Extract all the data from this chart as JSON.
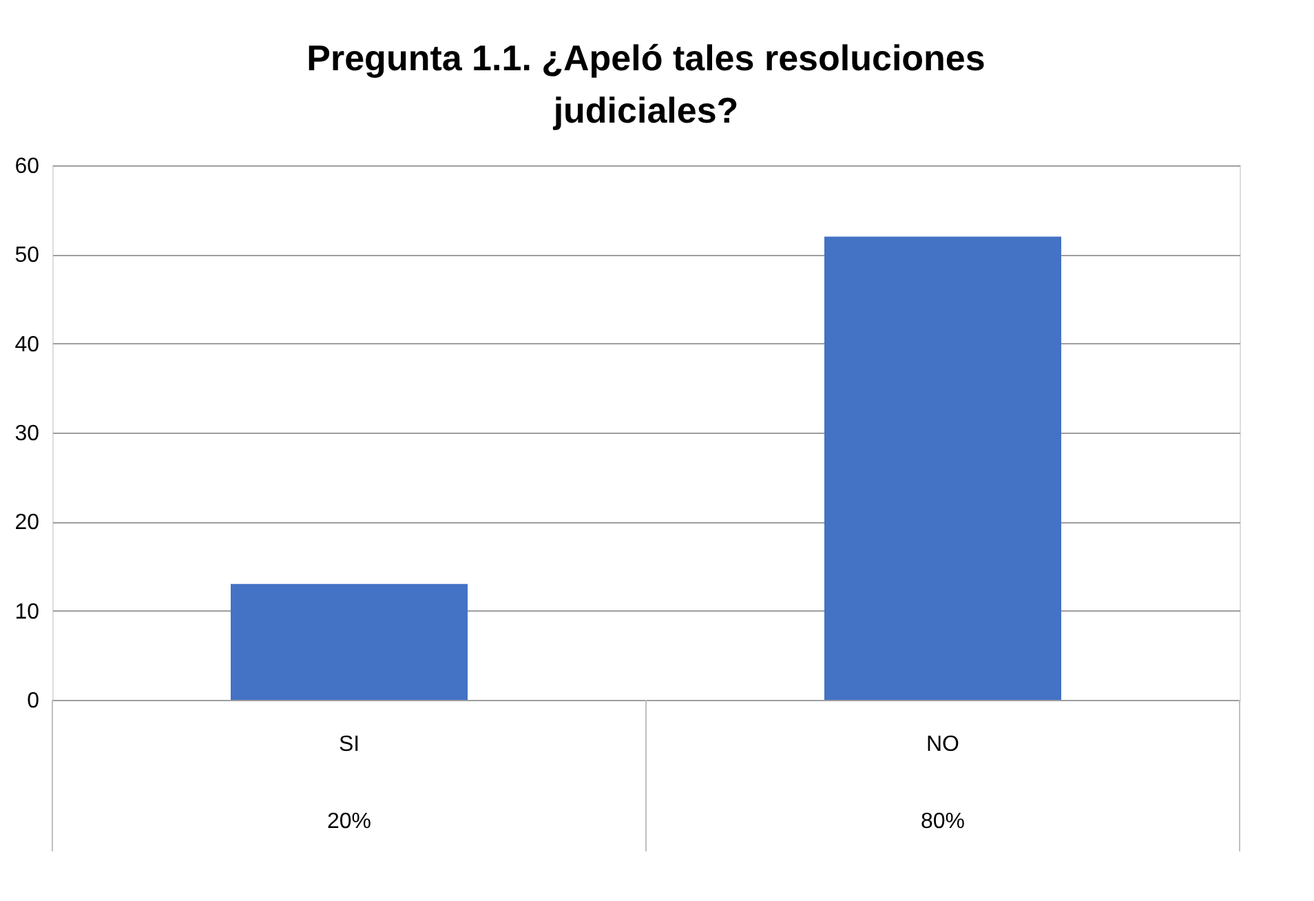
{
  "chart_data": {
    "type": "bar",
    "title": "Pregunta 1.1. ¿Apeló tales resoluciones judiciales?",
    "categories": [
      "SI",
      "NO"
    ],
    "values": [
      13,
      52
    ],
    "color": "#4472c4",
    "ylim": [
      0,
      60
    ],
    "yticks": [
      0,
      10,
      20,
      30,
      40,
      50,
      60
    ],
    "grid": "y",
    "annotations": [
      "20%",
      "80%"
    ]
  }
}
